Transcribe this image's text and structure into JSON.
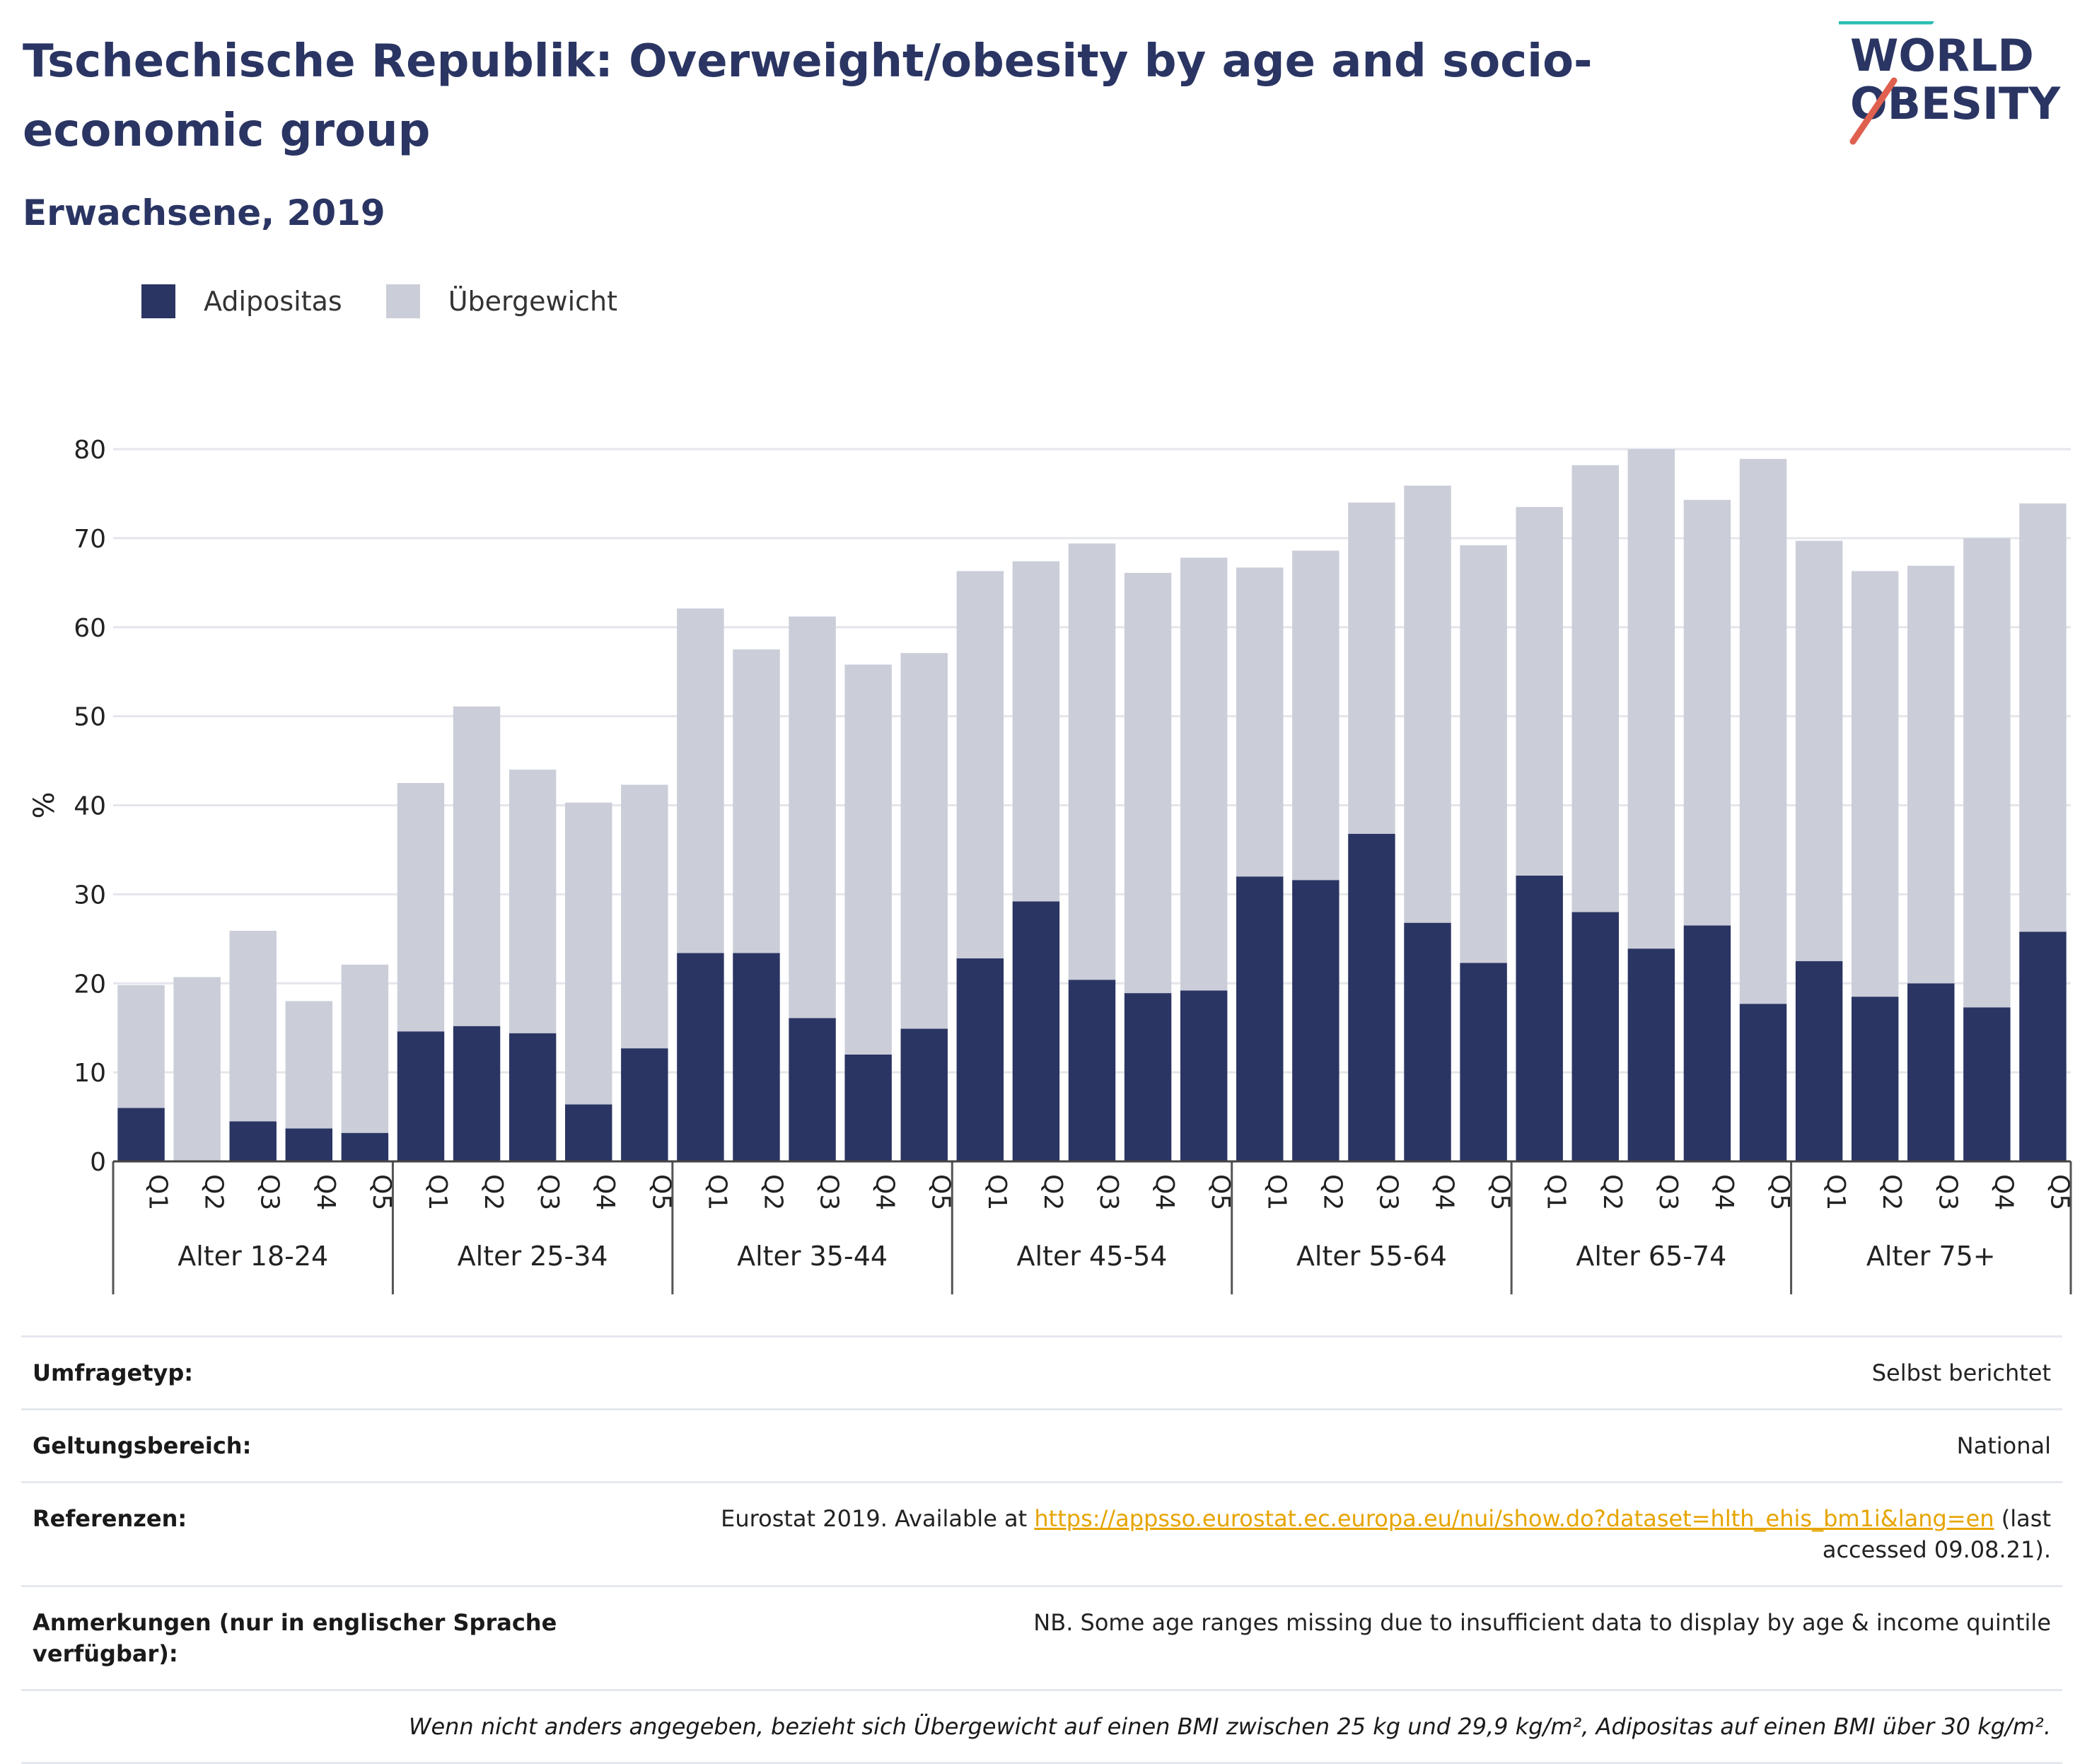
{
  "title": "Tschechische Republik: Overweight/obesity by age and socio-economic group",
  "subtitle": "Erwachsene, 2019",
  "logo": {
    "line1": "WORLD",
    "line2": "OBESITY",
    "accent_teal": "#2bbdb3",
    "accent_red": "#e0604f"
  },
  "legend": [
    {
      "label": "Adipositas",
      "color": "#2a3563"
    },
    {
      "label": "Übergewicht",
      "color": "#cbcdd9"
    }
  ],
  "chart_data": {
    "type": "bar",
    "stacked": true,
    "ylabel": "%",
    "ylim": [
      0,
      80
    ],
    "yticks": [
      0,
      10,
      20,
      30,
      40,
      50,
      60,
      70,
      80
    ],
    "grid": true,
    "legend_position": "top-left",
    "subcategories": [
      "Q1",
      "Q2",
      "Q3",
      "Q4",
      "Q5"
    ],
    "groups": [
      "Alter 18-24",
      "Alter 25-34",
      "Alter 35-44",
      "Alter 45-54",
      "Alter 55-64",
      "Alter 65-74",
      "Alter 75+"
    ],
    "series": [
      {
        "name": "Adipositas",
        "color": "#2a3563",
        "values": [
          [
            6.0,
            0,
            4.5,
            3.7,
            3.2
          ],
          [
            14.6,
            15.2,
            14.4,
            6.4,
            12.7
          ],
          [
            23.4,
            23.4,
            16.1,
            12.0,
            14.9
          ],
          [
            22.8,
            29.2,
            20.4,
            18.9,
            19.2
          ],
          [
            32.0,
            31.6,
            36.8,
            26.8,
            22.3
          ],
          [
            32.1,
            28.0,
            23.9,
            26.5,
            17.7
          ],
          [
            22.5,
            18.5,
            20.0,
            17.3,
            25.8
          ]
        ]
      },
      {
        "name": "Übergewicht",
        "color": "#cbcdd9",
        "values": [
          [
            13.8,
            20.7,
            21.4,
            14.3,
            18.9
          ],
          [
            27.9,
            35.9,
            29.6,
            33.9,
            29.6
          ],
          [
            38.7,
            34.1,
            45.1,
            43.8,
            42.2
          ],
          [
            43.5,
            38.2,
            49.0,
            47.2,
            48.6
          ],
          [
            34.7,
            37.0,
            37.2,
            49.1,
            46.9
          ],
          [
            41.4,
            50.2,
            56.1,
            47.8,
            61.2
          ],
          [
            47.2,
            47.8,
            46.9,
            52.7,
            48.1
          ]
        ]
      }
    ]
  },
  "meta": {
    "rows": [
      {
        "label": "Umfragetyp:",
        "value": "Selbst berichtet"
      },
      {
        "label": "Geltungsbereich:",
        "value": "National"
      }
    ],
    "references": {
      "label": "Referenzen:",
      "prefix": "Eurostat 2019. Available at",
      "link": "https://appsso.eurostat.ec.europa.eu/nui/show.do?dataset=hlth_ehis_bm1i&lang=en",
      "suffix": "(last accessed 09.08.21)."
    },
    "notes": {
      "label": "Anmerkungen (nur in englischer Sprache verfügbar):",
      "value": "NB. Some age ranges missing due to insufficient data to display by age & income quintile"
    },
    "footnote": "Wenn nicht anders angegeben, bezieht sich Übergewicht auf einen BMI zwischen 25 kg und 29,9 kg/m², Adipositas auf einen BMI über 30 kg/m²."
  }
}
